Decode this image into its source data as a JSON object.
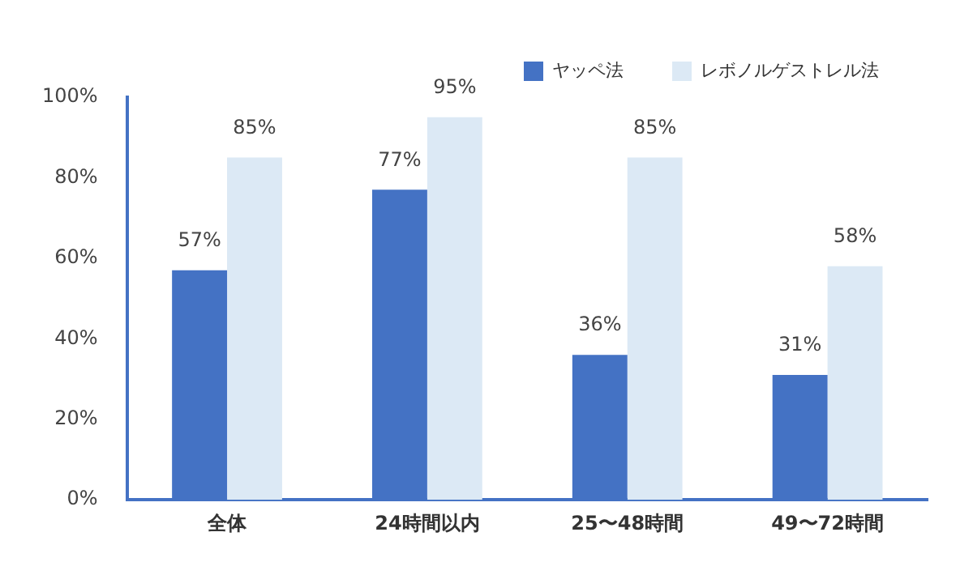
{
  "chart_data": {
    "type": "bar",
    "categories": [
      "全体",
      "24時間以内",
      "25〜48時間",
      "49〜72時間"
    ],
    "series": [
      {
        "name": "ヤッペ法",
        "color": "#4472c4",
        "values": [
          57,
          77,
          36,
          31
        ],
        "value_labels": [
          "57%",
          "77%",
          "36%",
          "31%"
        ]
      },
      {
        "name": "レボノルゲストレル法",
        "color": "#dce9f5",
        "values": [
          85,
          95,
          85,
          58
        ],
        "value_labels": [
          "85%",
          "95%",
          "85%",
          "58%"
        ]
      }
    ],
    "ylim": [
      0,
      100
    ],
    "yticks": [
      {
        "value": 0,
        "label": "0%"
      },
      {
        "value": 20,
        "label": "20%"
      },
      {
        "value": 40,
        "label": "40%"
      },
      {
        "value": 60,
        "label": "60%"
      },
      {
        "value": 80,
        "label": "80%"
      },
      {
        "value": 100,
        "label": "100%"
      }
    ],
    "grid": false,
    "legend": "top right"
  }
}
